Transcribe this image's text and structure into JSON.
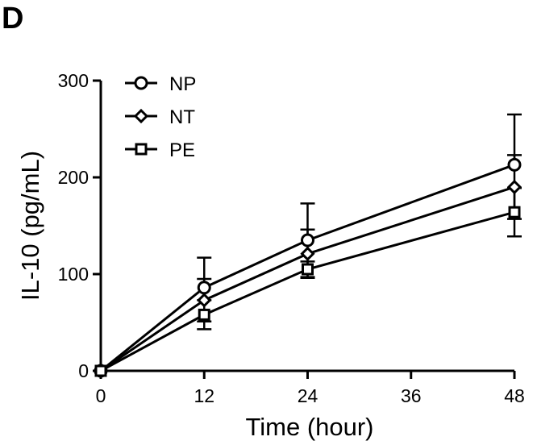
{
  "panel_label": "D",
  "chart_data": {
    "type": "line",
    "xlabel": "Time (hour)",
    "ylabel": "IL-10 (pg/mL)",
    "xlim": [
      0,
      48
    ],
    "ylim": [
      0,
      300
    ],
    "x_ticks": [
      0,
      12,
      24,
      36,
      48
    ],
    "y_ticks": [
      0,
      100,
      200,
      300
    ],
    "legend_position": "top-left",
    "grid": false,
    "x": [
      0,
      12,
      24,
      48
    ],
    "series": [
      {
        "name": "NP",
        "marker": "circle",
        "values": [
          0,
          86,
          135,
          213
        ],
        "error": [
          0,
          31,
          38,
          52
        ]
      },
      {
        "name": "NT",
        "marker": "diamond",
        "values": [
          0,
          73,
          121,
          190
        ],
        "error": [
          0,
          22,
          25,
          33
        ]
      },
      {
        "name": "PE",
        "marker": "square",
        "values": [
          0,
          58,
          105,
          164
        ],
        "error": [
          0,
          15,
          8,
          25
        ]
      }
    ]
  }
}
